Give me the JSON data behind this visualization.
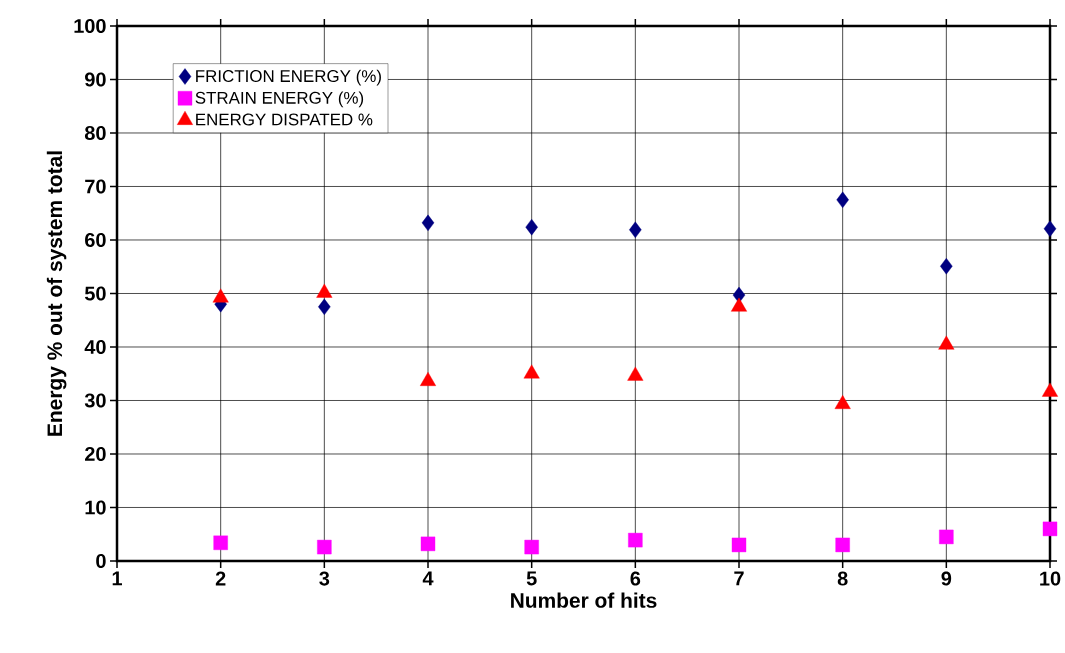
{
  "chart_data": {
    "type": "scatter",
    "xlabel": "Number of hits",
    "ylabel": "Energy % out of system total",
    "x": [
      2,
      3,
      4,
      5,
      6,
      7,
      8,
      9,
      10
    ],
    "series": [
      {
        "name": "FRICTION ENERGY (%)",
        "color": "#000080",
        "marker": "diamond",
        "values": [
          48.0,
          47.5,
          63.2,
          62.4,
          61.9,
          49.7,
          67.5,
          55.1,
          62.1
        ]
      },
      {
        "name": "STRAIN ENERGY (%)",
        "color": "#ff00ff",
        "marker": "square",
        "values": [
          3.4,
          2.6,
          3.2,
          2.6,
          3.9,
          3.0,
          3.0,
          4.5,
          6.0
        ]
      },
      {
        "name": "ENERGY DISPATED %",
        "color": "#ff0000",
        "marker": "triangle",
        "values": [
          49.2,
          50.1,
          33.6,
          35.0,
          34.6,
          47.5,
          29.3,
          40.4,
          31.6
        ]
      }
    ],
    "xlim": [
      1,
      10
    ],
    "xticks": [
      1,
      2,
      3,
      4,
      5,
      6,
      7,
      8,
      9,
      10
    ],
    "ylim": [
      0,
      100
    ],
    "yticks": [
      0,
      10,
      20,
      30,
      40,
      50,
      60,
      70,
      80,
      90,
      100
    ],
    "grid": true,
    "legend": "top left"
  }
}
